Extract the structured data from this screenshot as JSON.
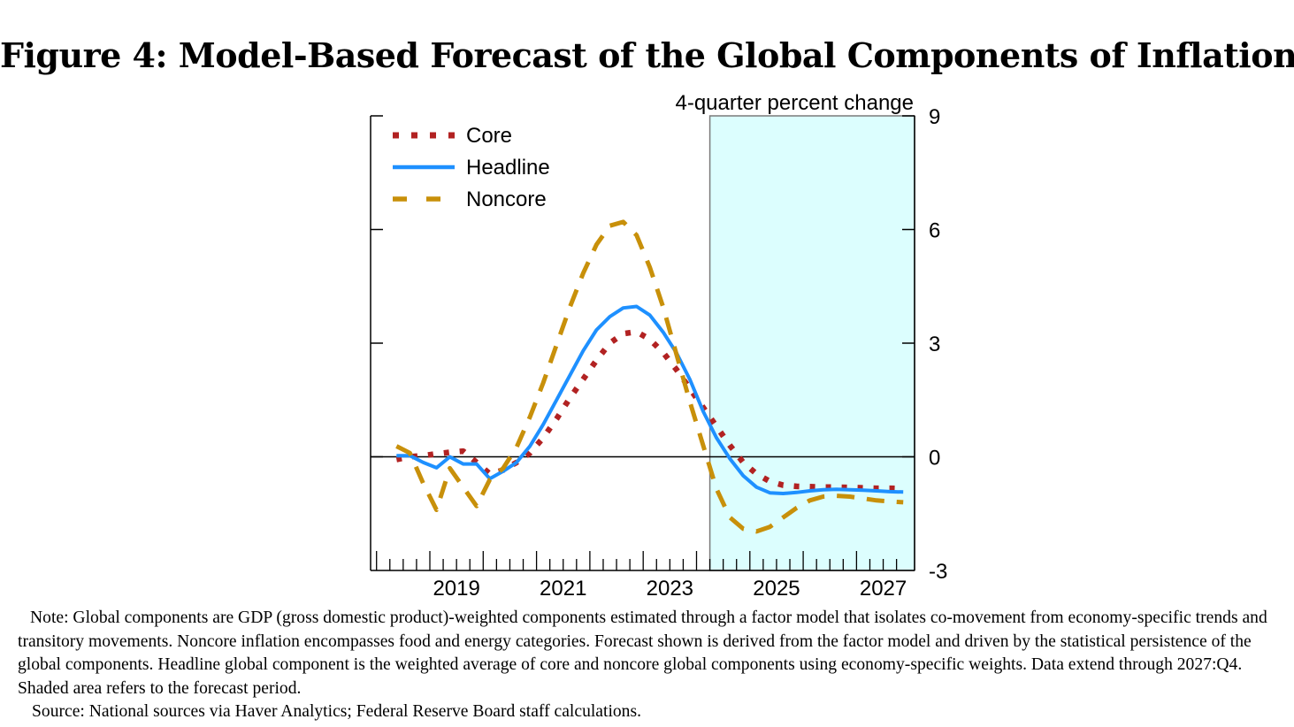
{
  "figure": {
    "title": "Figure 4:  Model-Based Forecast of the Global Components of Inflation",
    "note": "Note:  Global components are GDP (gross domestic product)-weighted components estimated through a factor model that isolates co-movement from economy-specific trends and transitory movements.  Noncore inflation encompasses food and energy categories.  Forecast shown is derived from the factor model and driven by the statistical persistence of the global components.  Headline global component is the weighted average of core and noncore global components using economy-specific weights.  Data extend through 2027:Q4.  Shaded area refers to the forecast period.",
    "source": "Source:  National sources via Haver Analytics; Federal Reserve Board staff calculations."
  },
  "chart_data": {
    "type": "line",
    "title": "Model-Based Forecast of the Global Components of Inflation",
    "ylabel": "4-quarter percent change",
    "xlabel": "",
    "ylim": [
      -3,
      9
    ],
    "yticks": [
      -3,
      0,
      3,
      6,
      9
    ],
    "ytick_labels": [
      "-3",
      "0",
      "3",
      "6",
      "9"
    ],
    "xlim": [
      2018,
      2028
    ],
    "xtick_labels": [
      "2019",
      "2021",
      "2023",
      "2025",
      "2027"
    ],
    "xtick_label_years": [
      2019,
      2021,
      2023,
      2025,
      2027
    ],
    "frequency": "quarterly",
    "legend_position": "top-left",
    "zero_line": true,
    "forecast_shading": {
      "start": "2024:Q2",
      "end": "2027:Q4",
      "color": "#dcfefe"
    },
    "x": [
      "2018:Q2",
      "2018:Q3",
      "2018:Q4",
      "2019:Q1",
      "2019:Q2",
      "2019:Q3",
      "2019:Q4",
      "2020:Q1",
      "2020:Q2",
      "2020:Q3",
      "2020:Q4",
      "2021:Q1",
      "2021:Q2",
      "2021:Q3",
      "2021:Q4",
      "2022:Q1",
      "2022:Q2",
      "2022:Q3",
      "2022:Q4",
      "2023:Q1",
      "2023:Q2",
      "2023:Q3",
      "2023:Q4",
      "2024:Q1",
      "2024:Q2",
      "2024:Q3",
      "2024:Q4",
      "2025:Q1",
      "2025:Q2",
      "2025:Q3",
      "2025:Q4",
      "2026:Q1",
      "2026:Q2",
      "2026:Q3",
      "2026:Q4",
      "2027:Q1",
      "2027:Q2",
      "2027:Q3",
      "2027:Q4"
    ],
    "series": [
      {
        "name": "Core",
        "style": "dotted",
        "color": "#b22222",
        "values": [
          -0.07,
          0.0,
          0.03,
          0.08,
          0.12,
          0.15,
          -0.15,
          -0.45,
          -0.35,
          -0.15,
          0.1,
          0.5,
          1.0,
          1.55,
          2.05,
          2.55,
          3.0,
          3.25,
          3.3,
          3.1,
          2.75,
          2.3,
          1.8,
          1.3,
          0.8,
          0.3,
          -0.15,
          -0.45,
          -0.65,
          -0.75,
          -0.78,
          -0.79,
          -0.8,
          -0.8,
          -0.81,
          -0.82,
          -0.83,
          -0.83,
          -0.84
        ]
      },
      {
        "name": "Headline",
        "style": "solid",
        "color": "#1e90ff",
        "values": [
          0.03,
          0.03,
          -0.15,
          -0.29,
          0.0,
          -0.19,
          -0.19,
          -0.58,
          -0.38,
          -0.15,
          0.28,
          0.85,
          1.5,
          2.15,
          2.8,
          3.35,
          3.7,
          3.93,
          3.97,
          3.74,
          3.29,
          2.74,
          2.04,
          1.2,
          0.5,
          -0.05,
          -0.5,
          -0.8,
          -0.95,
          -0.97,
          -0.94,
          -0.9,
          -0.87,
          -0.86,
          -0.87,
          -0.88,
          -0.9,
          -0.92,
          -0.93
        ]
      },
      {
        "name": "Noncore",
        "style": "dashed",
        "color": "#c8900a",
        "values": [
          0.28,
          0.1,
          -0.7,
          -1.4,
          -0.3,
          -0.8,
          -1.3,
          -0.6,
          -0.3,
          0.25,
          1.05,
          1.95,
          2.95,
          3.95,
          4.85,
          5.6,
          6.1,
          6.2,
          5.85,
          5.0,
          3.95,
          2.7,
          1.45,
          0.3,
          -0.85,
          -1.6,
          -1.9,
          -1.97,
          -1.85,
          -1.6,
          -1.35,
          -1.15,
          -1.05,
          -1.03,
          -1.05,
          -1.1,
          -1.15,
          -1.18,
          -1.2
        ]
      }
    ]
  }
}
